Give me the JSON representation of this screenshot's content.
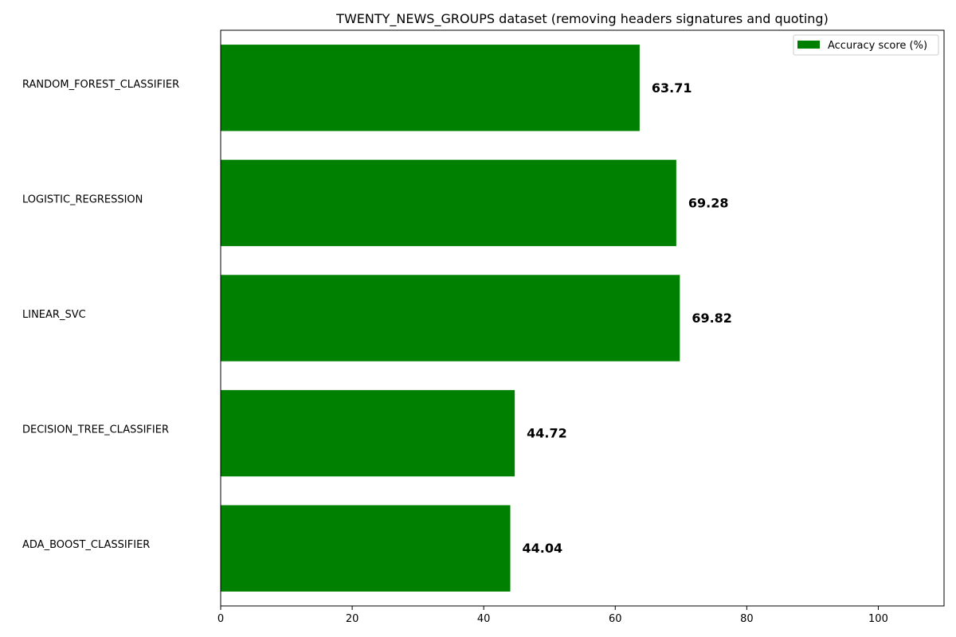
{
  "chart_data": {
    "type": "bar",
    "orientation": "horizontal",
    "title": "TWENTY_NEWS_GROUPS dataset (removing headers signatures and quoting)",
    "xlabel": "",
    "ylabel": "",
    "categories": [
      "RANDOM_FOREST_CLASSIFIER",
      "LOGISTIC_REGRESSION",
      "LINEAR_SVC",
      "DECISION_TREE_CLASSIFIER",
      "ADA_BOOST_CLASSIFIER"
    ],
    "series": [
      {
        "name": "Accuracy score (%)",
        "values": [
          63.71,
          69.28,
          69.82,
          44.72,
          44.04
        ],
        "color": "#008000"
      }
    ],
    "value_labels": [
      "63.71",
      "69.28",
      "69.82",
      "44.72",
      "44.04"
    ],
    "xlim": [
      0,
      110
    ],
    "xticks": [
      0,
      20,
      40,
      60,
      80,
      100
    ],
    "grid": false,
    "legend_position": "top-right"
  }
}
